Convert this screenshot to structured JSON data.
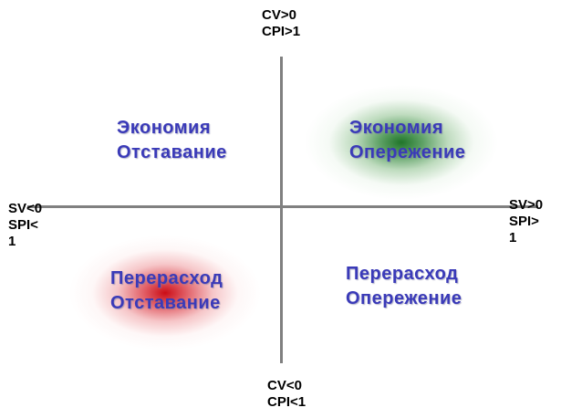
{
  "axes": {
    "top": [
      "CV>0",
      "CPI>1"
    ],
    "bottom": [
      "CV<0",
      "CPI<1"
    ],
    "left": [
      "SV<0",
      "SPI<",
      "1"
    ],
    "right": [
      "SV>0",
      "SPI>",
      "1"
    ]
  },
  "quadrants": {
    "top_left": [
      "Экономия",
      "Отставание"
    ],
    "top_right": [
      "Экономия",
      "Опережение"
    ],
    "bottom_left": [
      "Перерасход",
      "Отставание"
    ],
    "bottom_right": [
      "Перерасход",
      "Опережение"
    ]
  },
  "colors": {
    "axis": "#808080",
    "quadrant_text": "#3a3ab8",
    "top_right_glow": "#1e6e28",
    "bottom_left_glow": "#c8000a"
  }
}
